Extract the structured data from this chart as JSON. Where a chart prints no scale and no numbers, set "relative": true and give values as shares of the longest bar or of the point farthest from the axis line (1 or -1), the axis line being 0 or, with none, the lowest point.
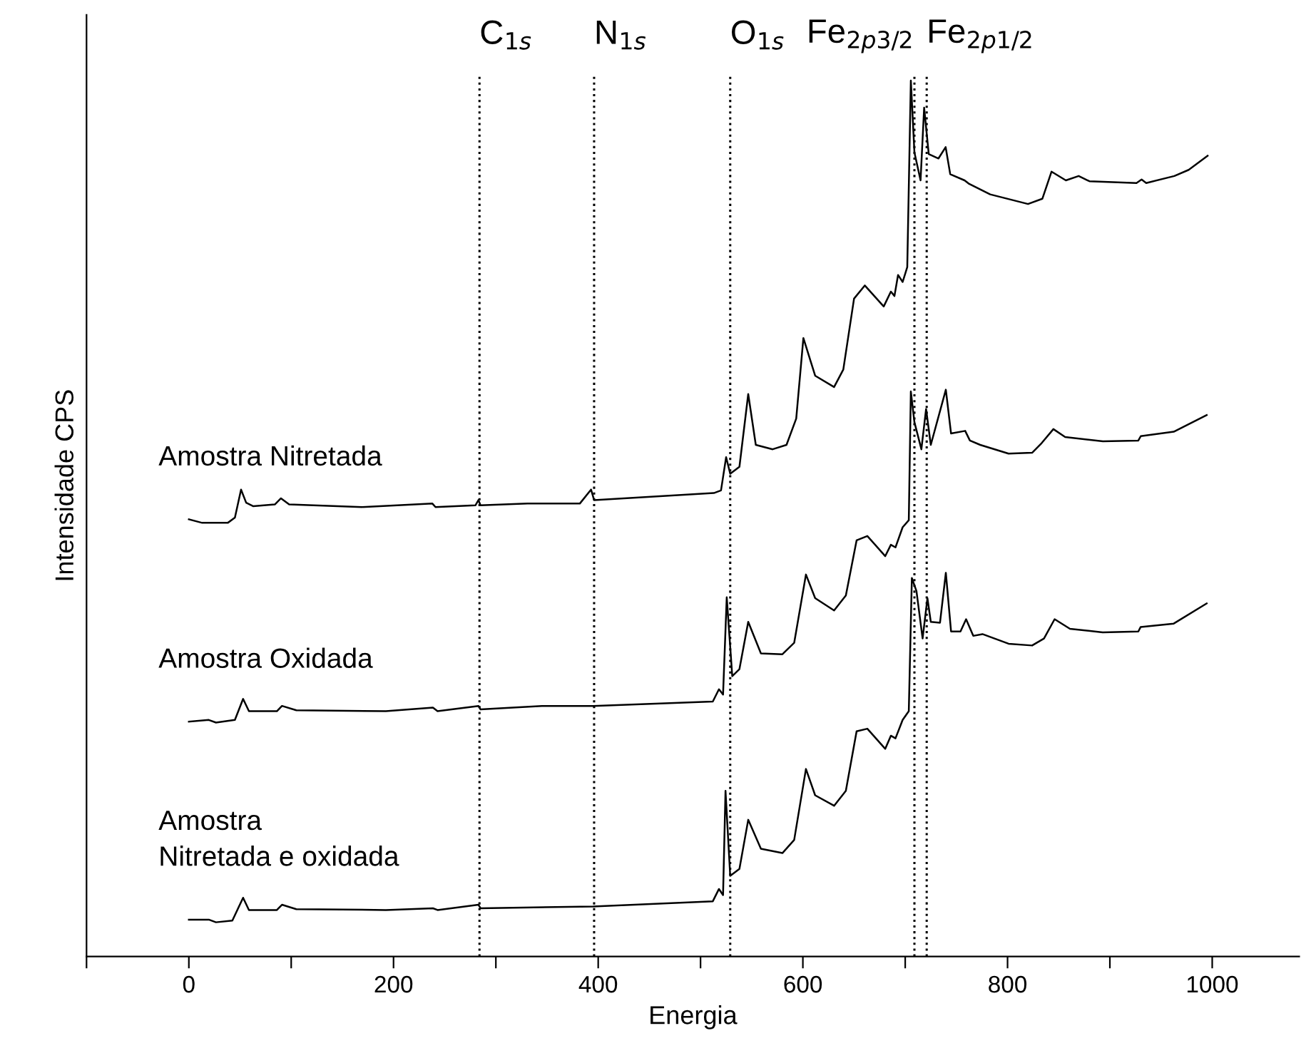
{
  "chart_data": {
    "type": "line",
    "xlabel": "Energia",
    "ylabel": "Intensidade CPS",
    "relative": true,
    "xlim": [
      -100,
      1085
    ],
    "xticks": [
      {
        "value": -100,
        "label": null
      },
      0,
      {
        "value": 100,
        "label": null
      },
      200,
      {
        "value": 300,
        "label": null
      },
      400,
      {
        "value": 500,
        "label": null
      },
      600,
      {
        "value": 700,
        "label": null
      },
      800,
      {
        "value": 900,
        "label": null
      },
      1000
    ],
    "grid": false,
    "legend": false,
    "marker": "none",
    "line_style": "solid",
    "series": [
      {
        "name": "Amostra Nitretada",
        "color": "#000000",
        "x": [
          0,
          13,
          38,
          45,
          51,
          56,
          63,
          84,
          90,
          98,
          169,
          238,
          241,
          280,
          283,
          285,
          331,
          382,
          393,
          396,
          513,
          520,
          525,
          529,
          538,
          546.6,
          554,
          570.5,
          584,
          593.5,
          600.5,
          612,
          630.5,
          639.5,
          650,
          660.5,
          679,
          686,
          689.5,
          693,
          697.5,
          702,
          705.5,
          709,
          715,
          718.5,
          723,
          732.5,
          739.5,
          744,
          758,
          762.5,
          783,
          820,
          834,
          843,
          857,
          869.5,
          880,
          926,
          931,
          935.5,
          963,
          977,
          995.5
        ],
        "values": [
          0.499,
          0.495,
          0.495,
          0.501,
          0.533,
          0.518,
          0.514,
          0.516,
          0.523,
          0.516,
          0.513,
          0.517,
          0.513,
          0.515,
          0.521,
          0.515,
          0.517,
          0.517,
          0.533,
          0.521,
          0.529,
          0.532,
          0.57,
          0.551,
          0.559,
          0.642,
          0.584,
          0.579,
          0.584,
          0.614,
          0.706,
          0.663,
          0.65,
          0.67,
          0.751,
          0.766,
          0.742,
          0.759,
          0.754,
          0.778,
          0.77,
          0.787,
          1,
          0.918,
          0.886,
          0.969,
          0.916,
          0.911,
          0.924,
          0.893,
          0.886,
          0.882,
          0.87,
          0.859,
          0.865,
          0.896,
          0.886,
          0.891,
          0.885,
          0.883,
          0.887,
          0.883,
          0.891,
          0.898,
          0.914
        ]
      },
      {
        "name": "Amostra Oxidada",
        "color": "#000000",
        "x": [
          0,
          19.5,
          26.5,
          45,
          53,
          58.7,
          86,
          91,
          105,
          192.5,
          238.5,
          243,
          283,
          285,
          345,
          395,
          512,
          518,
          522,
          525.6,
          531,
          538,
          546.6,
          559,
          580,
          591.5,
          603,
          612,
          630.5,
          642,
          652.5,
          663,
          680.5,
          686,
          690.5,
          697.5,
          703.5,
          705.5,
          709,
          715.8,
          720.4,
          725,
          739.7,
          744.8,
          758.6,
          763.2,
          773.3,
          801,
          824,
          833.3,
          844.8,
          856.3,
          893.2,
          927.8,
          930.2,
          962.4,
          994.6
        ],
        "values": [
          0.268,
          0.27,
          0.267,
          0.27,
          0.294,
          0.28,
          0.28,
          0.286,
          0.281,
          0.28,
          0.284,
          0.28,
          0.286,
          0.282,
          0.286,
          0.286,
          0.291,
          0.305,
          0.299,
          0.41,
          0.32,
          0.328,
          0.382,
          0.346,
          0.345,
          0.358,
          0.436,
          0.409,
          0.395,
          0.412,
          0.475,
          0.48,
          0.457,
          0.47,
          0.467,
          0.49,
          0.498,
          0.645,
          0.61,
          0.579,
          0.625,
          0.584,
          0.647,
          0.597,
          0.6,
          0.589,
          0.584,
          0.574,
          0.575,
          0.586,
          0.602,
          0.593,
          0.588,
          0.589,
          0.594,
          0.599,
          0.618
        ]
      },
      {
        "name": "Amostra\nNitretada e oxidada",
        "color": "#000000",
        "x": [
          0,
          19.5,
          26.5,
          42.5,
          53,
          58.7,
          86,
          91,
          105,
          192.5,
          238.5,
          243,
          283,
          285,
          395,
          512,
          518,
          522,
          524.4,
          529,
          538,
          546.6,
          559,
          580,
          591.5,
          603,
          612,
          630.5,
          642,
          652.5,
          663,
          680.5,
          686,
          690.5,
          697.5,
          703.5,
          706.5,
          711,
          717,
          721.7,
          725,
          734,
          739.7,
          744.8,
          754,
          759.5,
          766.5,
          775.5,
          801,
          824,
          835.6,
          846,
          861,
          893,
          927.8,
          930,
          962.4,
          994.6
        ],
        "values": [
          0.042,
          0.042,
          0.039,
          0.041,
          0.067,
          0.053,
          0.053,
          0.059,
          0.054,
          0.053,
          0.055,
          0.053,
          0.059,
          0.055,
          0.057,
          0.063,
          0.077,
          0.07,
          0.189,
          0.092,
          0.1,
          0.156,
          0.123,
          0.118,
          0.133,
          0.214,
          0.184,
          0.172,
          0.189,
          0.257,
          0.26,
          0.237,
          0.252,
          0.249,
          0.27,
          0.28,
          0.432,
          0.417,
          0.363,
          0.409,
          0.382,
          0.381,
          0.438,
          0.371,
          0.371,
          0.385,
          0.366,
          0.368,
          0.357,
          0.355,
          0.363,
          0.385,
          0.374,
          0.37,
          0.371,
          0.376,
          0.38,
          0.403
        ]
      }
    ],
    "ref_lines": [
      {
        "axis": "x",
        "value": 284,
        "label": "C$_{1s}$",
        "color": "#000000",
        "line_style": "dotted"
      },
      {
        "axis": "x",
        "value": 396,
        "label": "N$_{1s}$",
        "color": "#000000",
        "line_style": "dotted"
      },
      {
        "axis": "x",
        "value": 529,
        "label": "O$_{1s}$",
        "color": "#000000",
        "line_style": "dotted"
      },
      {
        "axis": "x",
        "value": 709,
        "label": "Fe$_{2p3/2}$",
        "color": "#000000",
        "line_style": "dotted"
      },
      {
        "axis": "x",
        "value": 721,
        "label": "Fe$_{2p1/2}$",
        "color": "#000000",
        "line_style": "dotted"
      }
    ]
  }
}
